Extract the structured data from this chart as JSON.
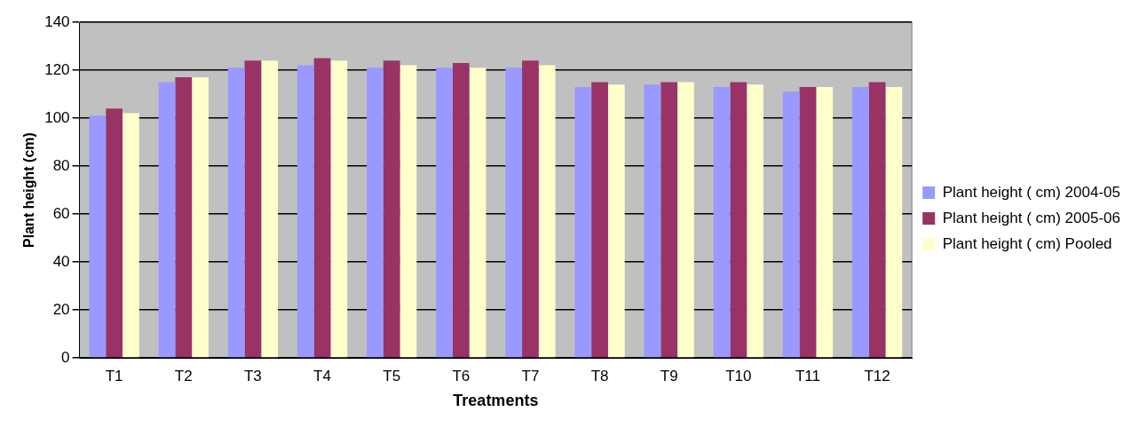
{
  "chart_data": {
    "type": "bar",
    "xlabel": "Treatments",
    "ylabel": "Plant height (cm)",
    "categories": [
      "T1",
      "T2",
      "T3",
      "T4",
      "T5",
      "T6",
      "T7",
      "T8",
      "T9",
      "T10",
      "T11",
      "T12"
    ],
    "series": [
      {
        "name": "Plant height ( cm) 2004-05",
        "color": "#9999ff",
        "values": [
          101,
          115,
          121,
          122,
          121,
          121,
          121,
          113,
          114,
          113,
          111,
          113
        ]
      },
      {
        "name": "Plant height ( cm) 2005-06",
        "color": "#993366",
        "values": [
          104,
          117,
          124,
          125,
          124,
          123,
          124,
          115,
          115,
          115,
          113,
          115
        ]
      },
      {
        "name": "Plant height ( cm) Pooled",
        "color": "#ffffcc",
        "values": [
          102,
          117,
          124,
          124,
          122,
          121,
          122,
          114,
          115,
          114,
          113,
          113
        ]
      }
    ],
    "ylim": [
      0,
      140
    ],
    "yticks": [
      0,
      20,
      40,
      60,
      80,
      100,
      120,
      140
    ],
    "grid": "y",
    "legend": "right"
  }
}
